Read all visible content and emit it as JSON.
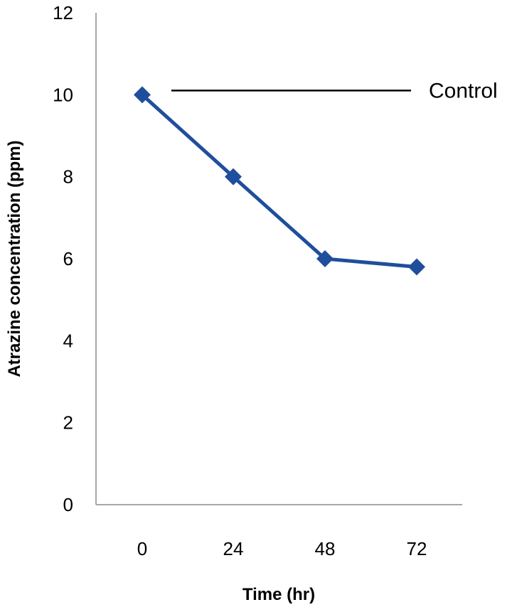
{
  "chart_data": {
    "type": "line",
    "title": "",
    "xlabel": "Time (hr)",
    "ylabel": "Atrazine concentration (ppm)",
    "categories": [
      "0",
      "24",
      "48",
      "72"
    ],
    "ylim": [
      0,
      12
    ],
    "yticks": [
      "0",
      "2",
      "4",
      "6",
      "8",
      "10",
      "12"
    ],
    "grid": false,
    "legend": "none",
    "series": [
      {
        "values": [
          10,
          8,
          6,
          5.8
        ],
        "color": "#1f4e9c",
        "marker": "diamond"
      }
    ],
    "annotations": [
      {
        "type": "hline",
        "y": 10,
        "label": "Control",
        "color": "#000000"
      }
    ]
  }
}
